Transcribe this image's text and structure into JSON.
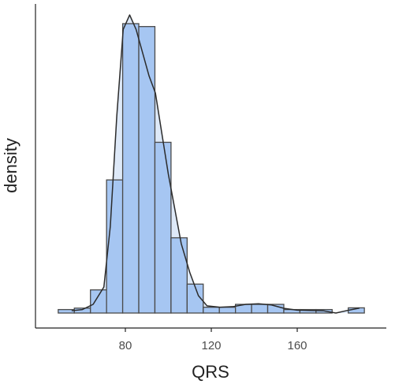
{
  "chart_data": {
    "type": "bar",
    "subtype": "histogram-with-density",
    "title": "",
    "xlabel": "QRS",
    "ylabel": "density",
    "x_ticks": [
      80,
      120,
      160
    ],
    "xlim": [
      46,
      192
    ],
    "ylim": [
      0,
      1.04
    ],
    "y_axis_tick_labels": false,
    "grid": false,
    "legend": "none",
    "bin_width": 7.5,
    "bins": [
      {
        "start": 48.75,
        "end": 56.25,
        "density": 0.012
      },
      {
        "start": 56.25,
        "end": 63.75,
        "density": 0.017
      },
      {
        "start": 63.75,
        "end": 71.25,
        "density": 0.08
      },
      {
        "start": 71.25,
        "end": 78.75,
        "density": 0.46
      },
      {
        "start": 78.75,
        "end": 86.25,
        "density": 1.0
      },
      {
        "start": 86.25,
        "end": 93.75,
        "density": 0.99
      },
      {
        "start": 93.75,
        "end": 101.25,
        "density": 0.59
      },
      {
        "start": 101.25,
        "end": 108.75,
        "density": 0.26
      },
      {
        "start": 108.75,
        "end": 116.25,
        "density": 0.1
      },
      {
        "start": 116.25,
        "end": 123.75,
        "density": 0.02
      },
      {
        "start": 123.75,
        "end": 131.25,
        "density": 0.02
      },
      {
        "start": 131.25,
        "end": 138.75,
        "density": 0.03
      },
      {
        "start": 138.75,
        "end": 146.25,
        "density": 0.03
      },
      {
        "start": 146.25,
        "end": 153.75,
        "density": 0.03
      },
      {
        "start": 153.75,
        "end": 161.25,
        "density": 0.012
      },
      {
        "start": 161.25,
        "end": 168.75,
        "density": 0.012
      },
      {
        "start": 168.75,
        "end": 176.25,
        "density": 0.012
      },
      {
        "start": 176.25,
        "end": 183.75,
        "density": 0.0
      },
      {
        "start": 183.75,
        "end": 191.25,
        "density": 0.018
      }
    ],
    "density_curve": {
      "x": [
        55,
        60,
        65,
        70,
        73,
        76,
        79,
        82,
        85,
        88,
        91,
        94,
        97,
        100,
        103,
        106,
        110,
        114,
        118,
        124,
        130,
        136,
        142,
        148,
        154,
        160,
        166,
        172,
        178,
        184,
        189
      ],
      "y": [
        0.008,
        0.012,
        0.03,
        0.09,
        0.3,
        0.68,
        0.98,
        1.03,
        0.98,
        0.9,
        0.82,
        0.76,
        0.62,
        0.48,
        0.36,
        0.24,
        0.14,
        0.06,
        0.025,
        0.02,
        0.022,
        0.03,
        0.032,
        0.028,
        0.016,
        0.01,
        0.009,
        0.008,
        0.0,
        0.01,
        0.017
      ]
    },
    "colors": {
      "bar_fill": "#a6c6f2",
      "bar_stroke": "#4a4a4a",
      "density_fill": "#d8e5f7",
      "density_stroke": "#2b2b2b",
      "axis": "#222222"
    }
  }
}
